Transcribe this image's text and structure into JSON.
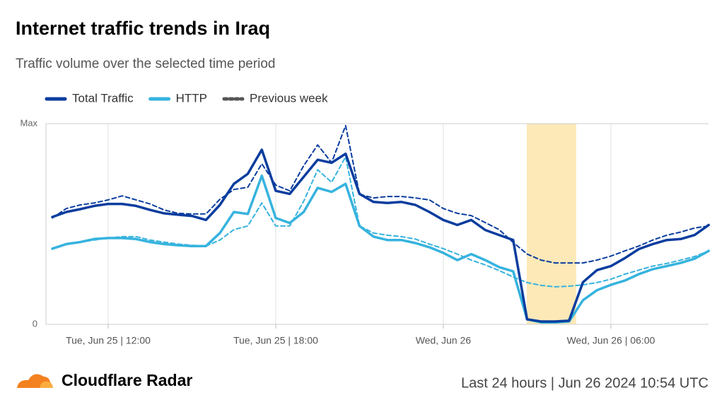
{
  "chart_data": {
    "type": "line",
    "title": "Internet traffic trends in Iraq",
    "subtitle": "Traffic volume over the selected time period",
    "footer_brand": "Cloudflare Radar",
    "footer_period": "Last 24 hours | Jun 26 2024 10:54 UTC",
    "categories": [
      null,
      null,
      null,
      null,
      "Tue, Jun 25 | 12:00",
      null,
      null,
      null,
      null,
      null,
      null,
      null,
      null,
      null,
      null,
      null,
      "Tue, Jun 25 | 18:00",
      null,
      null,
      null,
      null,
      null,
      null,
      null,
      null,
      null,
      null,
      null,
      "Wed, Jun 26",
      null,
      null,
      null,
      null,
      null,
      null,
      null,
      null,
      null,
      null,
      null,
      "Wed, Jun 26 | 06:00",
      null,
      null,
      null,
      null,
      null,
      null,
      null
    ],
    "ylim": [
      0,
      1
    ],
    "yticks": [
      0,
      {
        "value": 1,
        "label": "Max"
      }
    ],
    "grid": true,
    "legend": "top-left",
    "series": [
      {
        "name": "Total Traffic",
        "color": "#0a3d9e",
        "dashed": false,
        "values": [
          0.535,
          0.56,
          0.574,
          0.59,
          0.6,
          0.6,
          0.59,
          0.57,
          0.553,
          0.546,
          0.54,
          0.52,
          0.595,
          0.7,
          0.75,
          0.87,
          0.665,
          0.65,
          0.735,
          0.82,
          0.805,
          0.85,
          0.65,
          0.61,
          0.605,
          0.61,
          0.595,
          0.56,
          0.52,
          0.495,
          0.52,
          0.47,
          0.445,
          0.42,
          0.025,
          0.014,
          0.014,
          0.018,
          0.21,
          0.27,
          0.29,
          0.33,
          0.375,
          0.4,
          0.42,
          0.425,
          0.445,
          0.495
        ]
      },
      {
        "name": "HTTP",
        "color": "#36b3de",
        "dashed": false,
        "values": [
          0.377,
          0.4,
          0.41,
          0.425,
          0.43,
          0.43,
          0.425,
          0.41,
          0.4,
          0.394,
          0.39,
          0.39,
          0.455,
          0.56,
          0.55,
          0.74,
          0.53,
          0.505,
          0.56,
          0.68,
          0.66,
          0.7,
          0.49,
          0.437,
          0.42,
          0.42,
          0.405,
          0.384,
          0.356,
          0.32,
          0.35,
          0.32,
          0.285,
          0.264,
          0.025,
          0.01,
          0.01,
          0.014,
          0.12,
          0.17,
          0.197,
          0.218,
          0.25,
          0.275,
          0.29,
          0.306,
          0.327,
          0.366
        ]
      },
      {
        "name": "Previous week",
        "color": "#0a3d9e",
        "dashed": true,
        "values": [
          0.53,
          0.577,
          0.595,
          0.605,
          0.62,
          0.64,
          0.62,
          0.6,
          0.57,
          0.553,
          0.55,
          0.55,
          0.623,
          0.672,
          0.683,
          0.8,
          0.694,
          0.665,
          0.79,
          0.894,
          0.806,
          0.99,
          0.648,
          0.63,
          0.637,
          0.637,
          0.63,
          0.62,
          0.577,
          0.553,
          0.542,
          0.507,
          0.472,
          0.408,
          0.35,
          0.32,
          0.306,
          0.306,
          0.306,
          0.32,
          0.34,
          0.366,
          0.39,
          0.42,
          0.444,
          0.46,
          0.48,
          0.49
        ]
      },
      {
        "name": "Previous week",
        "color": "#36b3de",
        "dashed": true,
        "values": [
          0.377,
          0.4,
          0.41,
          0.42,
          0.43,
          0.437,
          0.437,
          0.42,
          0.41,
          0.4,
          0.394,
          0.39,
          0.42,
          0.472,
          0.49,
          0.605,
          0.49,
          0.49,
          0.613,
          0.77,
          0.708,
          0.835,
          0.49,
          0.455,
          0.444,
          0.437,
          0.425,
          0.4,
          0.377,
          0.35,
          0.32,
          0.296,
          0.268,
          0.236,
          0.208,
          0.194,
          0.187,
          0.19,
          0.197,
          0.208,
          0.225,
          0.25,
          0.27,
          0.29,
          0.303,
          0.32,
          0.338,
          0.366
        ]
      }
    ]
  }
}
